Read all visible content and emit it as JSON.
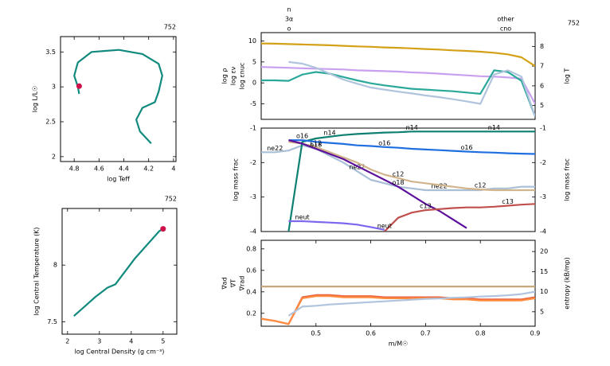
{
  "chart_data": [
    {
      "type": "line",
      "corner_label": "752",
      "xlabel": "log Teff",
      "ylabel": "log L/L☉",
      "xlim": [
        4.91,
        3.98
      ],
      "xticks": [
        4.8,
        4.6,
        4.4,
        4.2,
        4
      ],
      "ylim": [
        1.93,
        3.72
      ],
      "yticks": [
        2,
        2.5,
        3,
        3.5
      ],
      "series": [
        {
          "color": "#118a7e",
          "x": [
            4.18,
            4.27,
            4.3,
            4.25,
            4.15,
            4.12,
            4.09,
            4.12,
            4.25,
            4.44,
            4.66,
            4.77,
            4.8,
            4.77,
            4.76
          ],
          "values": [
            2.19,
            2.36,
            2.53,
            2.7,
            2.78,
            2.93,
            3.16,
            3.33,
            3.47,
            3.53,
            3.5,
            3.35,
            3.16,
            3.0,
            2.9
          ]
        },
        {
          "color": "#d0104a",
          "marker": "circle",
          "x": [
            4.76
          ],
          "values": [
            3.01
          ]
        }
      ]
    },
    {
      "type": "line",
      "corner_label": "752",
      "xlabel": "log Central Density (g cm⁻³)",
      "ylabel": "log Central Temperature (K)",
      "xlim": [
        1.83,
        5.43
      ],
      "xticks": [
        2,
        3,
        4,
        5
      ],
      "ylim": [
        7.39,
        8.5
      ],
      "yticks": [
        7.5,
        8
      ],
      "series": [
        {
          "color": "#118a7e",
          "x": [
            2.2,
            2.88,
            3.25,
            3.5,
            4.12,
            4.88,
            5.0
          ],
          "values": [
            7.55,
            7.72,
            7.8,
            7.83,
            8.06,
            8.3,
            8.32
          ]
        },
        {
          "color": "#d0104a",
          "marker": "circle",
          "x": [
            5.0
          ],
          "values": [
            8.32
          ]
        }
      ]
    },
    {
      "type": "line",
      "corner_label": "752",
      "legend": "axis",
      "annotations": [
        "n",
        "3α",
        "o",
        "other",
        "cno"
      ],
      "xlim": [
        0.4,
        0.9
      ],
      "ylim": [
        -8.7,
        12
      ],
      "yticks": [
        -5,
        0,
        5,
        10
      ],
      "y2lim": [
        4.3,
        8.7
      ],
      "y2ticks": [
        5,
        6,
        7,
        8
      ],
      "x": [
        0.4,
        0.425,
        0.45,
        0.475,
        0.5,
        0.525,
        0.55,
        0.575,
        0.6,
        0.625,
        0.65,
        0.675,
        0.7,
        0.725,
        0.75,
        0.775,
        0.8,
        0.825,
        0.85,
        0.875,
        0.9
      ],
      "series": [
        {
          "name": "log ρ",
          "color": "#c9a0f0",
          "values": [
            3.8,
            3.7,
            3.6,
            3.5,
            3.4,
            3.3,
            3.2,
            3.0,
            2.9,
            2.8,
            2.7,
            2.5,
            2.4,
            2.2,
            2.0,
            1.8,
            1.6,
            1.5,
            1.3,
            1.0,
            -5
          ]
        },
        {
          "name": "log εν",
          "color": "#2aa89a",
          "values": [
            0.6,
            0.6,
            0.5,
            2.0,
            2.6,
            2.2,
            1.4,
            0.6,
            -0.1,
            -0.6,
            -1.0,
            -1.4,
            -1.6,
            -1.8,
            -2.0,
            -2.3,
            -2.6,
            3.0,
            2.6,
            0.5,
            -8
          ]
        },
        {
          "name": "log εnuc",
          "color": "#b0c4de",
          "values": [
            null,
            null,
            5.0,
            4.6,
            3.6,
            2.2,
            0.8,
            -0.2,
            -1.1,
            -1.6,
            -2.1,
            -2.5,
            -3.0,
            -3.4,
            -3.9,
            -4.4,
            -5.0,
            2.0,
            3.0,
            1.5,
            -8
          ]
        },
        {
          "name": "log T",
          "color": "#d4a017",
          "axis": "y2",
          "values": [
            8.15,
            8.14,
            8.12,
            8.1,
            8.08,
            8.06,
            8.03,
            8.0,
            7.98,
            7.95,
            7.93,
            7.9,
            7.87,
            7.84,
            7.8,
            7.77,
            7.73,
            7.68,
            7.6,
            7.45,
            7.0
          ]
        }
      ]
    },
    {
      "type": "line",
      "legend": "inline",
      "ylabel": "log mass frac",
      "y2label": "log mass frac",
      "xlim": [
        0.4,
        0.9
      ],
      "ylim": [
        -4,
        -1
      ],
      "yticks": [
        -4,
        -3,
        -2,
        -1
      ],
      "y2lim": [
        -4,
        -1
      ],
      "y2ticks": [
        -4,
        -3,
        -2,
        -1
      ],
      "x": [
        0.4,
        0.425,
        0.45,
        0.475,
        0.5,
        0.525,
        0.55,
        0.575,
        0.6,
        0.625,
        0.65,
        0.675,
        0.7,
        0.725,
        0.75,
        0.775,
        0.8,
        0.825,
        0.85,
        0.875,
        0.9
      ],
      "series": [
        {
          "name": "ne22",
          "color": "#a9bfd6",
          "values": [
            -1.7,
            -1.7,
            -1.65,
            -1.5,
            -1.6,
            -1.8,
            -2.0,
            -2.25,
            -2.5,
            -2.6,
            -2.7,
            -2.75,
            -2.8,
            -2.8,
            -2.8,
            -2.8,
            -2.8,
            -2.75,
            -2.75,
            -2.7,
            -2.7
          ]
        },
        {
          "name": "c12",
          "color": "#d2b48c",
          "values": [
            null,
            null,
            -1.4,
            -1.45,
            -1.55,
            -1.7,
            -1.85,
            -2.0,
            -2.2,
            -2.35,
            -2.45,
            -2.55,
            -2.6,
            -2.65,
            -2.7,
            -2.75,
            -2.78,
            -2.8,
            -2.8,
            -2.8,
            -2.8
          ]
        },
        {
          "name": "n14",
          "color": "#0f7f72",
          "values": [
            null,
            null,
            -4,
            -1.4,
            -1.3,
            -1.25,
            -1.2,
            -1.17,
            -1.15,
            -1.13,
            -1.12,
            -1.1,
            -1.1,
            -1.1,
            -1.1,
            -1.1,
            -1.1,
            -1.1,
            -1.1,
            -1.1,
            -1.1
          ]
        },
        {
          "name": "o16",
          "color": "#1f6fe0",
          "values": [
            null,
            null,
            -1.35,
            -1.35,
            -1.4,
            -1.43,
            -1.46,
            -1.5,
            -1.52,
            -1.55,
            -1.57,
            -1.6,
            -1.62,
            -1.64,
            -1.66,
            -1.68,
            -1.7,
            -1.71,
            -1.73,
            -1.74,
            -1.75
          ]
        },
        {
          "name": "o18",
          "color": "#5b0f9a",
          "values": [
            null,
            null,
            -1.35,
            -1.45,
            -1.6,
            -1.75,
            -1.9,
            -2.1,
            -2.3,
            -2.5,
            -2.7,
            -2.95,
            -3.2,
            -3.4,
            -3.65,
            -3.9,
            null,
            null,
            null,
            null,
            null
          ]
        },
        {
          "name": "c13",
          "color": "#c0504d",
          "values": [
            null,
            null,
            null,
            null,
            null,
            null,
            null,
            null,
            null,
            -4,
            -3.6,
            -3.45,
            -3.38,
            -3.35,
            -3.32,
            -3.3,
            -3.3,
            -3.28,
            -3.25,
            -3.22,
            -3.2
          ]
        },
        {
          "name": "neut",
          "color": "#7b68ee",
          "values": [
            null,
            null,
            -3.7,
            -3.7,
            -3.72,
            -3.74,
            -3.76,
            -3.8,
            -3.87,
            -3.95,
            null,
            null,
            null,
            null,
            null,
            null,
            null,
            null,
            null,
            null,
            null
          ]
        }
      ]
    },
    {
      "type": "line",
      "legend": "axis",
      "xlabel": "m/M☉",
      "xlim": [
        0.4,
        0.9
      ],
      "xticks": [
        0.5,
        0.6,
        0.7,
        0.8,
        0.9
      ],
      "ylim": [
        0.08,
        0.88
      ],
      "yticks": [
        0.2,
        0.4,
        0.6,
        0.8
      ],
      "y2lim": [
        1.4,
        22.8
      ],
      "y2ticks": [
        5,
        10,
        15,
        20
      ],
      "x": [
        0.4,
        0.425,
        0.45,
        0.475,
        0.5,
        0.525,
        0.55,
        0.575,
        0.6,
        0.625,
        0.65,
        0.675,
        0.7,
        0.725,
        0.75,
        0.775,
        0.8,
        0.825,
        0.85,
        0.875,
        0.9
      ],
      "series": [
        {
          "name": "∇ad",
          "color": "#c8a878",
          "values": [
            0.45,
            0.45,
            0.45,
            0.45,
            0.45,
            0.45,
            0.45,
            0.45,
            0.45,
            0.45,
            0.45,
            0.45,
            0.45,
            0.45,
            0.45,
            0.45,
            0.45,
            0.45,
            0.45,
            0.45,
            0.45
          ]
        },
        {
          "name": "∇T",
          "color": "#e8603c",
          "values": [
            0.15,
            0.13,
            0.1,
            0.35,
            0.37,
            0.37,
            0.36,
            0.36,
            0.36,
            0.35,
            0.35,
            0.35,
            0.35,
            0.35,
            0.34,
            0.34,
            0.33,
            0.33,
            0.33,
            0.33,
            0.35
          ]
        },
        {
          "name": "∇rad",
          "color": "#ff8c40",
          "values": [
            0.15,
            0.13,
            0.1,
            0.34,
            0.36,
            0.36,
            0.35,
            0.35,
            0.35,
            0.34,
            0.34,
            0.34,
            0.34,
            0.34,
            0.33,
            0.33,
            0.32,
            0.32,
            0.32,
            0.32,
            0.34
          ]
        },
        {
          "name": "entropy (kB/mp)",
          "color": "#b0c4de",
          "axis": "y2",
          "values": [
            null,
            null,
            4,
            6.3,
            6.5,
            6.8,
            7.0,
            7.2,
            7.4,
            7.6,
            7.8,
            8.0,
            8.2,
            8.3,
            8.5,
            8.6,
            8.8,
            8.9,
            9.1,
            9.4,
            10
          ]
        }
      ]
    }
  ]
}
